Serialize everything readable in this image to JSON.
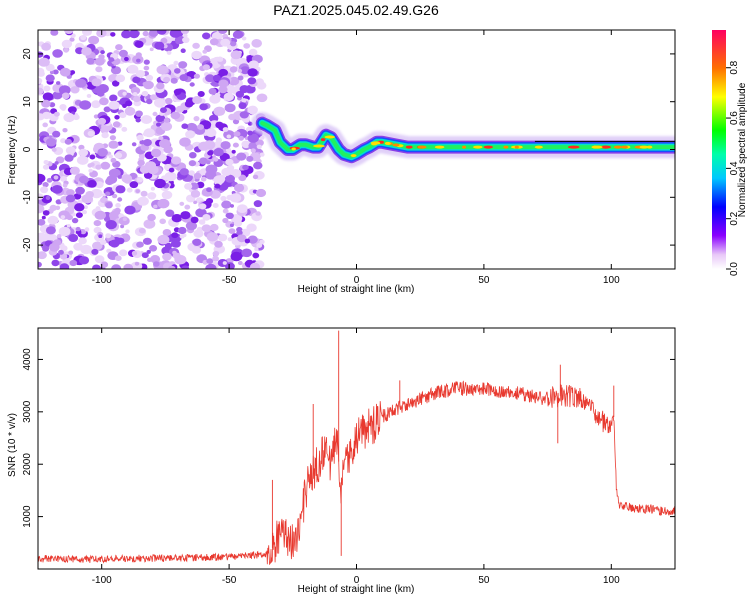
{
  "title": "PAZ1.2025.045.02.49.G26",
  "chart_data": [
    {
      "type": "heatmap",
      "xlabel": "Height of straight line (km)",
      "ylabel": "Frequency (Hz)",
      "xlim": [
        -125,
        125
      ],
      "ylim": [
        -25,
        25
      ],
      "xticks": [
        -100,
        -50,
        0,
        50,
        100
      ],
      "yticks": [
        -20,
        -10,
        0,
        10,
        20
      ],
      "noise_region_x": [
        -125,
        -37
      ],
      "ridge": {
        "x": [
          -37,
          -35,
          -32,
          -30,
          -27,
          -25,
          -22,
          -20,
          -17,
          -15,
          -12,
          -10,
          -7,
          -5,
          -2,
          0,
          3,
          5,
          8,
          10,
          15,
          20,
          30,
          50,
          75,
          100,
          125
        ],
        "freq": [
          5.5,
          5,
          4,
          1.5,
          0,
          0,
          1,
          1,
          0.5,
          0.5,
          3,
          2.5,
          0,
          -1,
          -1.5,
          -1,
          0,
          0.5,
          1.5,
          1.5,
          1,
          0.5,
          0.5,
          0.5,
          0.5,
          0.5,
          0.5
        ]
      },
      "colorbar": {
        "label": "Normalized spectral amplitude",
        "ticks": [
          "0.0",
          "0.2",
          "0.4",
          "0.6",
          "0.8"
        ],
        "range": [
          0,
          0.95
        ]
      }
    },
    {
      "type": "line",
      "xlabel": "Height of straight line (km)",
      "ylabel": "SNR (10 * v/v)",
      "xlim": [
        -125,
        125
      ],
      "ylim": [
        0,
        4600
      ],
      "xticks": [
        -100,
        -50,
        0,
        50,
        100
      ],
      "yticks": [
        1000,
        2000,
        3000,
        4000
      ],
      "color": "#e8392f",
      "x": [
        -125,
        -110,
        -90,
        -70,
        -50,
        -40,
        -35,
        -32,
        -30,
        -28,
        -25,
        -22,
        -20,
        -18,
        -15,
        -12,
        -10,
        -8,
        -6,
        -4,
        -2,
        0,
        5,
        10,
        15,
        20,
        25,
        30,
        35,
        40,
        50,
        60,
        70,
        75,
        80,
        85,
        90,
        95,
        100,
        101,
        102,
        103,
        105,
        110,
        115,
        120,
        125
      ],
      "y": [
        200,
        180,
        200,
        210,
        230,
        260,
        300,
        450,
        700,
        600,
        550,
        800,
        1500,
        1800,
        2000,
        2300,
        2000,
        2500,
        1600,
        2000,
        2200,
        2500,
        2700,
        2900,
        3050,
        3150,
        3250,
        3350,
        3400,
        3450,
        3430,
        3380,
        3300,
        3250,
        3300,
        3300,
        3200,
        2850,
        2800,
        2900,
        1500,
        1200,
        1200,
        1150,
        1150,
        1100,
        1100
      ],
      "spikes": [
        {
          "x": -33,
          "y": 1700
        },
        {
          "x": -17,
          "y": 3150
        },
        {
          "x": -7,
          "y": 4550
        },
        {
          "x": -6,
          "y": 250
        },
        {
          "x": 17,
          "y": 3600
        },
        {
          "x": 80,
          "y": 3900
        },
        {
          "x": 79,
          "y": 2400
        },
        {
          "x": 101,
          "y": 3500
        }
      ]
    }
  ]
}
